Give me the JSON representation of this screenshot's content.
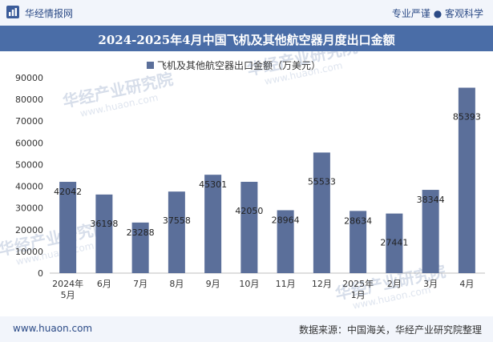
{
  "header": {
    "brand": "华经情报网",
    "slogan": "专业严谨 ● 客观科学"
  },
  "title": "2024-2025年4月中国飞机及其他航空器月度出口金额",
  "footer": {
    "site": "www.huaon.com",
    "source": "数据来源：中国海关，华经产业研究院整理"
  },
  "watermark": {
    "text": "华经产业研究院",
    "url": "www.huaon.com"
  },
  "colors": {
    "bar": "#5b6f9a",
    "title_bg": "#4a6da7",
    "band_bg": "#f2f5fb"
  },
  "chart_data": {
    "type": "bar",
    "title": "2024-2025年4月中国飞机及其他航空器月度出口金额",
    "categories": [
      [
        "2024年",
        "5月"
      ],
      [
        "6月"
      ],
      [
        "7月"
      ],
      [
        "8月"
      ],
      [
        "9月"
      ],
      [
        "10月"
      ],
      [
        "11月"
      ],
      [
        "12月"
      ],
      [
        "2025年",
        "1月"
      ],
      [
        "2月"
      ],
      [
        "3月"
      ],
      [
        "4月"
      ]
    ],
    "series": [
      {
        "name": "飞机及其他航空器出口金额（万美元）",
        "values": [
          42042,
          36198,
          23288,
          37558,
          45301,
          42050,
          28964,
          55533,
          28634,
          27441,
          38344,
          85393
        ]
      }
    ],
    "label_positions": [
      "above",
      "inside",
      "above",
      "inside",
      "above",
      "inside",
      "above",
      "inside",
      "above",
      "inside",
      "above",
      "inside"
    ],
    "ylim": [
      0,
      90000
    ],
    "yticks": [
      0,
      10000,
      20000,
      30000,
      40000,
      50000,
      60000,
      70000,
      80000,
      90000
    ],
    "legend_position": "top-center",
    "grid": false
  }
}
